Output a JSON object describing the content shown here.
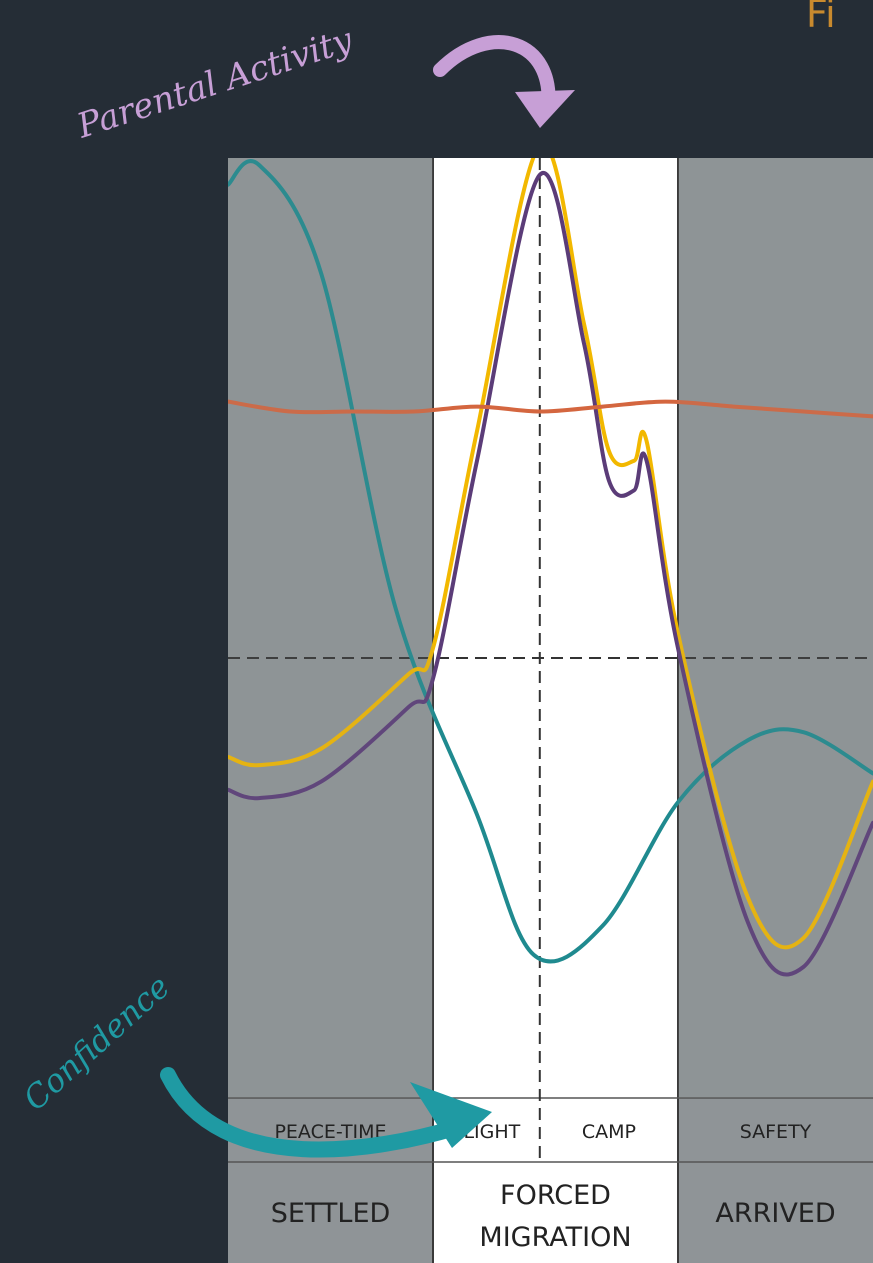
{
  "page": {
    "title_fragment": "Fi",
    "annotations": [
      {
        "text": "Parental Activity",
        "color": "#c79fd6"
      },
      {
        "text": "Confidence",
        "color": "#1f9aa3"
      }
    ]
  },
  "chart_data": {
    "type": "line",
    "title": "",
    "xlabel": "",
    "ylabel": "",
    "grid": false,
    "x_range": [
      0,
      100
    ],
    "y_range": [
      -100,
      100
    ],
    "reference_lines": {
      "y": 0,
      "x": 50
    },
    "phases": [
      {
        "name": "SETTLED",
        "stages": [
          "PEACE-TIME"
        ],
        "shaded": true,
        "range": [
          0,
          33
        ]
      },
      {
        "name": "FORCED\nMIGRATION",
        "name_lines": [
          "FORCED",
          "MIGRATION"
        ],
        "stages": [
          "FLIGHT",
          "CAMP"
        ],
        "shaded": false,
        "range": [
          33,
          72
        ]
      },
      {
        "name": "ARRIVED",
        "stages": [
          "SAFETY"
        ],
        "shaded": true,
        "range": [
          72,
          100
        ]
      }
    ],
    "series": [
      {
        "color": "#1f8a8f",
        "annotation": "Confidence",
        "x": [
          0,
          5,
          15,
          27,
          40,
          49,
          60,
          72,
          82,
          90,
          100
        ],
        "y": [
          96,
          100,
          78,
          10,
          -38,
          -72,
          -65,
          -35,
          -20,
          -18,
          -28
        ]
      },
      {
        "color": "#f2b800",
        "x": [
          0,
          5,
          15,
          29,
          33,
          40,
          50,
          57,
          61,
          65,
          67,
          72,
          82,
          90,
          100
        ],
        "y": [
          -24,
          -26,
          -22,
          -4,
          2,
          46,
          104,
          68,
          42,
          40,
          44,
          5,
          -58,
          -68,
          -30
        ]
      },
      {
        "color": "#5b3c78",
        "annotation": "Parental Activity",
        "x": [
          0,
          5,
          15,
          29,
          33,
          40,
          50,
          57,
          61,
          65,
          67,
          72,
          82,
          90,
          100
        ],
        "y": [
          -32,
          -34,
          -30,
          -12,
          -5,
          40,
          98,
          64,
          36,
          34,
          40,
          2,
          -64,
          -75,
          -40
        ]
      },
      {
        "color": "#d4663f",
        "x": [
          0,
          10,
          20,
          30,
          40,
          50,
          60,
          70,
          80,
          90,
          100
        ],
        "y": [
          52,
          50,
          50,
          50,
          51,
          50,
          51,
          52,
          51,
          50,
          49
        ]
      }
    ]
  }
}
